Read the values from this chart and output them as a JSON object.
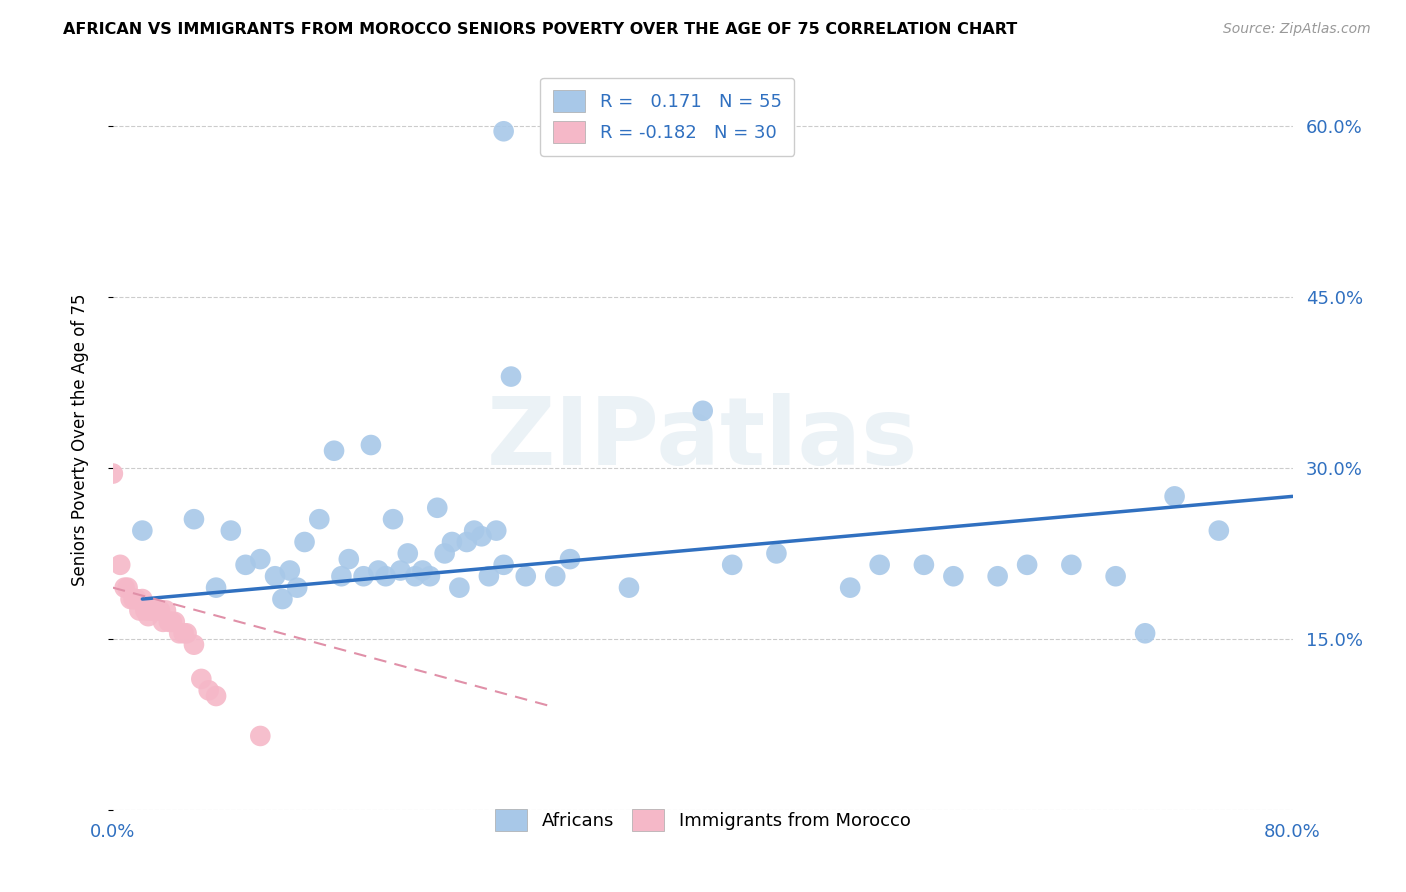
{
  "title": "AFRICAN VS IMMIGRANTS FROM MOROCCO SENIORS POVERTY OVER THE AGE OF 75 CORRELATION CHART",
  "source": "Source: ZipAtlas.com",
  "ylabel": "Seniors Poverty Over the Age of 75",
  "xlim": [
    0.0,
    0.8
  ],
  "ylim": [
    0.0,
    0.65
  ],
  "grid_color": "#cccccc",
  "background_color": "#ffffff",
  "watermark_text": "ZIPatlas",
  "legend_R1": "0.171",
  "legend_N1": "55",
  "legend_R2": "-0.182",
  "legend_N2": "30",
  "africans_color": "#a8c8e8",
  "morocco_color": "#f5b8c8",
  "line_blue": "#3070c0",
  "line_pink": "#e090a8",
  "africans_x": [
    0.265,
    0.02,
    0.055,
    0.07,
    0.08,
    0.09,
    0.1,
    0.11,
    0.115,
    0.12,
    0.125,
    0.13,
    0.14,
    0.15,
    0.155,
    0.16,
    0.17,
    0.175,
    0.18,
    0.185,
    0.19,
    0.195,
    0.2,
    0.205,
    0.21,
    0.215,
    0.22,
    0.225,
    0.23,
    0.235,
    0.24,
    0.245,
    0.25,
    0.255,
    0.26,
    0.265,
    0.27,
    0.28,
    0.3,
    0.31,
    0.35,
    0.4,
    0.42,
    0.45,
    0.5,
    0.52,
    0.55,
    0.57,
    0.6,
    0.62,
    0.65,
    0.68,
    0.7,
    0.72,
    0.75
  ],
  "africans_y": [
    0.595,
    0.245,
    0.255,
    0.195,
    0.245,
    0.215,
    0.22,
    0.205,
    0.185,
    0.21,
    0.195,
    0.235,
    0.255,
    0.315,
    0.205,
    0.22,
    0.205,
    0.32,
    0.21,
    0.205,
    0.255,
    0.21,
    0.225,
    0.205,
    0.21,
    0.205,
    0.265,
    0.225,
    0.235,
    0.195,
    0.235,
    0.245,
    0.24,
    0.205,
    0.245,
    0.215,
    0.38,
    0.205,
    0.205,
    0.22,
    0.195,
    0.35,
    0.215,
    0.225,
    0.195,
    0.215,
    0.215,
    0.205,
    0.205,
    0.215,
    0.215,
    0.205,
    0.155,
    0.275,
    0.245
  ],
  "morocco_x": [
    0.0,
    0.005,
    0.008,
    0.01,
    0.012,
    0.014,
    0.015,
    0.016,
    0.018,
    0.02,
    0.022,
    0.024,
    0.025,
    0.027,
    0.028,
    0.03,
    0.032,
    0.034,
    0.036,
    0.038,
    0.04,
    0.042,
    0.045,
    0.048,
    0.05,
    0.055,
    0.06,
    0.065,
    0.07,
    0.1
  ],
  "morocco_y": [
    0.295,
    0.215,
    0.195,
    0.195,
    0.185,
    0.185,
    0.185,
    0.185,
    0.175,
    0.185,
    0.175,
    0.17,
    0.175,
    0.175,
    0.175,
    0.175,
    0.175,
    0.165,
    0.175,
    0.165,
    0.165,
    0.165,
    0.155,
    0.155,
    0.155,
    0.145,
    0.115,
    0.105,
    0.1,
    0.065
  ],
  "blue_line_x": [
    0.02,
    0.8
  ],
  "blue_line_y": [
    0.185,
    0.275
  ],
  "pink_line_x": [
    0.0,
    0.3
  ],
  "pink_line_y": [
    0.195,
    0.09
  ]
}
